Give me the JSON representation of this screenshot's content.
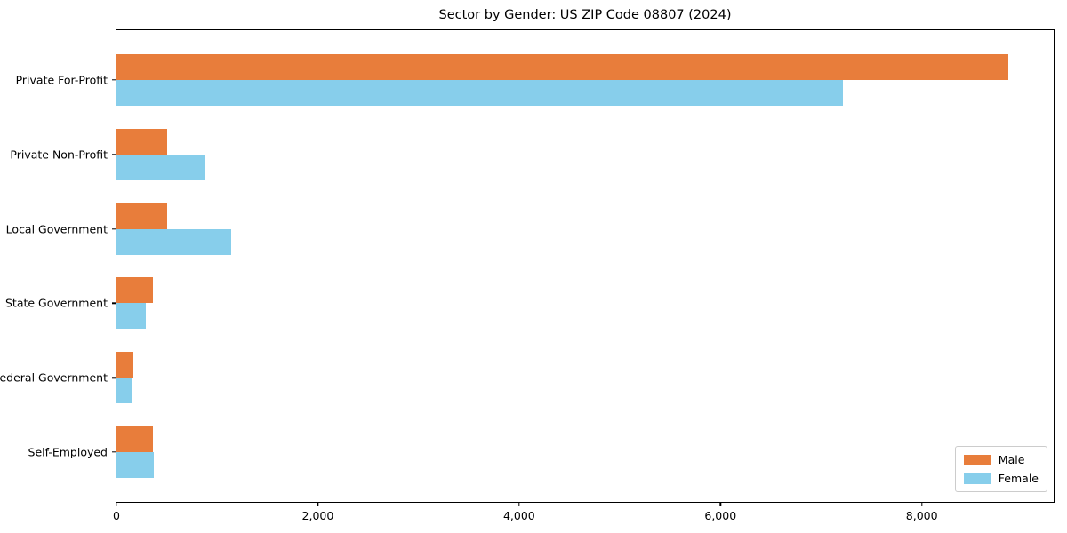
{
  "chart_data": {
    "type": "bar",
    "orientation": "horizontal",
    "title": "Sector by Gender: US ZIP Code 08807 (2024)",
    "xlabel": "",
    "ylabel": "",
    "grid": false,
    "categories": [
      "Private For-Profit",
      "Private Non-Profit",
      "Local Government",
      "State Government",
      "Federal Government",
      "Self-Employed"
    ],
    "series": [
      {
        "name": "Male",
        "color": "#e87d3b",
        "values": [
          8860,
          500,
          500,
          360,
          170,
          360
        ]
      },
      {
        "name": "Female",
        "color": "#87ceeb",
        "values": [
          7220,
          880,
          1140,
          290,
          160,
          370
        ]
      }
    ],
    "xlim": [
      0,
      9310
    ],
    "xticks": [
      {
        "value": 0,
        "label": "0"
      },
      {
        "value": 2000,
        "label": "2,000"
      },
      {
        "value": 4000,
        "label": "4,000"
      },
      {
        "value": 6000,
        "label": "6,000"
      },
      {
        "value": 8000,
        "label": "8,000"
      }
    ],
    "legend": {
      "position": "lower right",
      "entries": [
        "Male",
        "Female"
      ]
    }
  },
  "colors": {
    "male": "#e87d3b",
    "female": "#87ceeb",
    "axis": "#000000",
    "legend_border": "#cccccc",
    "background": "#ffffff",
    "text": "#000000"
  }
}
